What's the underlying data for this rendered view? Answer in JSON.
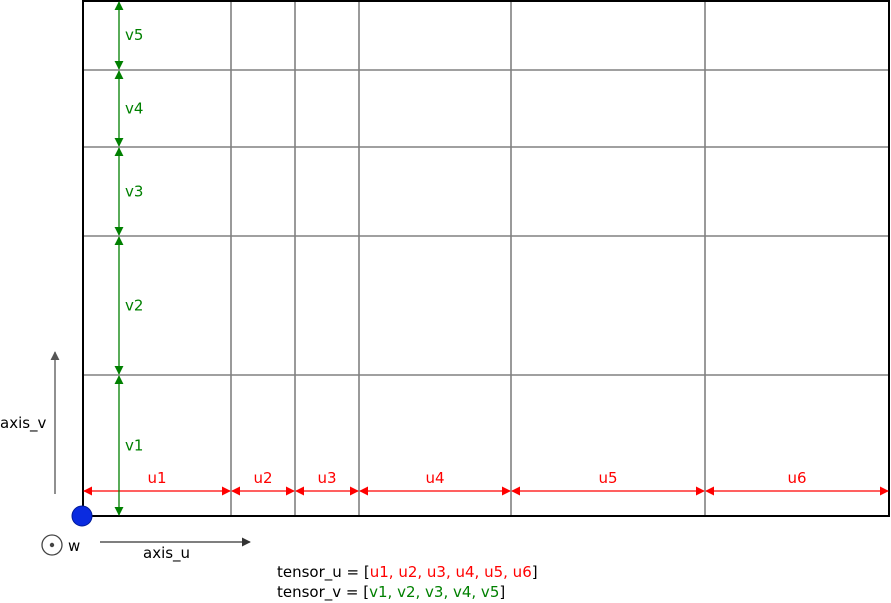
{
  "colors": {
    "u": "#ff0000",
    "v": "#008000",
    "grid": "#808080",
    "border": "#000000",
    "origin": "#0000ee"
  },
  "axes": {
    "u_label": "axis_u",
    "v_label": "axis_v",
    "w_label": "w"
  },
  "tensor_u": {
    "name": "tensor_u",
    "values": [
      "u1",
      "u2",
      "u3",
      "u4",
      "u5",
      "u6"
    ],
    "widths": [
      148,
      64,
      64,
      152,
      194,
      184
    ]
  },
  "tensor_v": {
    "name": "tensor_v",
    "values": [
      "v1",
      "v2",
      "v3",
      "v4",
      "v5"
    ],
    "heights": [
      141,
      139,
      89,
      77,
      70
    ]
  },
  "formulas": {
    "u_prefix": "tensor_u = [",
    "u_items": "u1, u2, u3, u4, u5, u6",
    "v_prefix": "tensor_v = [",
    "v_items": "v1, v2, v3, v4, v5",
    "suffix": "]"
  }
}
